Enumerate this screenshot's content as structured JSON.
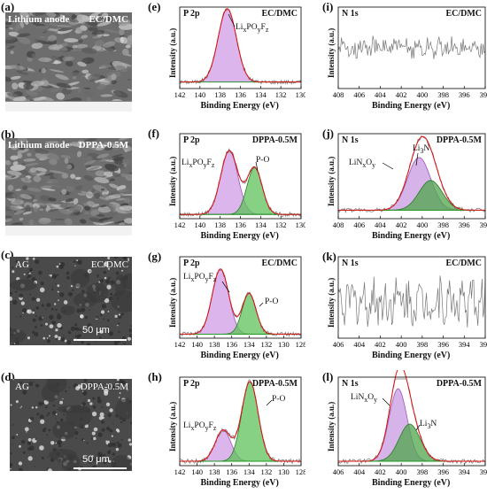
{
  "sem": [
    {
      "label": "(a)",
      "left_text": "Lithium anode",
      "right_text": "EC/DMC",
      "scale_text": ""
    },
    {
      "label": "(b)",
      "left_text": "Lithium anode",
      "right_text": "DPPA-0.5M",
      "scale_text": ""
    },
    {
      "label": "(c)",
      "left_text": "AG",
      "right_text": "EC/DMC",
      "scale_text": "50 μm"
    },
    {
      "label": "(d)",
      "left_text": "AG",
      "right_text": "DPPA-0.5M",
      "scale_text": "50 μm"
    }
  ],
  "common": {
    "ylabel": "Intensity (a.u.)",
    "xlabel": "Binding Energy (eV)"
  },
  "colors": {
    "lipof_fill": "#cf9ce6",
    "po_fill": "#5ec25a",
    "linxoy_fill": "#c89ae0",
    "li3n_fill": "#4ea64b",
    "envelope": "#e01010",
    "raw": "#777777",
    "background": "#1a9a1a"
  },
  "chart_data": [
    {
      "panel": "(e)",
      "type": "line",
      "element": "P 2p",
      "condition": "EC/DMC",
      "xlim": [
        142,
        130
      ],
      "ticks": [
        142,
        140,
        138,
        136,
        134,
        132,
        130
      ],
      "peaks": [
        {
          "label": "LixPOyFz",
          "center": 137.3,
          "height": 0.9,
          "width": 0.9
        }
      ],
      "background_level": 0.08
    },
    {
      "panel": "(i)",
      "type": "line",
      "element": "N 1s",
      "condition": "EC/DMC",
      "xlim": [
        408,
        394
      ],
      "ticks": [
        408,
        406,
        404,
        402,
        400,
        398,
        396,
        394
      ],
      "peaks": [],
      "background_level": 0.5
    },
    {
      "panel": "(f)",
      "type": "line",
      "element": "P 2p",
      "condition": "DPPA-0.5M",
      "xlim": [
        142,
        130
      ],
      "ticks": [
        142,
        140,
        138,
        136,
        134,
        132,
        130
      ],
      "peaks": [
        {
          "label": "LixPOyFz",
          "center": 137.1,
          "height": 0.75,
          "width": 0.85
        },
        {
          "label": "P-O",
          "center": 134.6,
          "height": 0.55,
          "width": 0.75
        }
      ],
      "background_level": 0.05
    },
    {
      "panel": "(j)",
      "type": "line",
      "element": "N 1s",
      "condition": "DPPA-0.5M",
      "xlim": [
        408,
        394
      ],
      "ticks": [
        408,
        406,
        404,
        402,
        400,
        398,
        396,
        394
      ],
      "peaks": [
        {
          "label": "LiNxOy",
          "center": 400.3,
          "height": 0.62,
          "width": 1.1
        },
        {
          "label": "Li3N",
          "center": 399.2,
          "height": 0.35,
          "width": 1.1
        }
      ],
      "background_level": 0.1
    },
    {
      "panel": "(g)",
      "type": "line",
      "element": "P 2p",
      "condition": "EC/DMC",
      "xlim": [
        142,
        128
      ],
      "ticks": [
        142,
        140,
        138,
        136,
        134,
        132,
        130,
        128
      ],
      "peaks": [
        {
          "label": "LixPOyFz",
          "center": 137.3,
          "height": 0.8,
          "width": 0.95
        },
        {
          "label": "P-O",
          "center": 134.0,
          "height": 0.5,
          "width": 0.8
        }
      ],
      "background_level": 0.05
    },
    {
      "panel": "(k)",
      "type": "line",
      "element": "N 1s",
      "condition": "EC/DMC",
      "xlim": [
        406,
        392
      ],
      "ticks": [
        406,
        404,
        402,
        400,
        398,
        396,
        394,
        392
      ],
      "peaks": [],
      "background_level": 0.45
    },
    {
      "panel": "(h)",
      "type": "line",
      "element": "P 2p",
      "condition": "DPPA-0.5M",
      "xlim": [
        142,
        128
      ],
      "ticks": [
        142,
        140,
        138,
        136,
        134,
        132,
        130,
        128
      ],
      "peaks": [
        {
          "label": "LixPOyFz",
          "center": 137.0,
          "height": 0.35,
          "width": 0.9
        },
        {
          "label": "P-O",
          "center": 133.9,
          "height": 0.9,
          "width": 0.95
        }
      ],
      "background_level": 0.05
    },
    {
      "panel": "(l)",
      "type": "line",
      "element": "N 1s",
      "condition": "DPPA-0.5M",
      "xlim": [
        406,
        392
      ],
      "ticks": [
        406,
        404,
        402,
        400,
        398,
        396,
        394,
        392
      ],
      "peaks": [
        {
          "label": "LiNxOy",
          "center": 400.3,
          "height": 0.82,
          "width": 0.85
        },
        {
          "label": "Li3N",
          "center": 399.2,
          "height": 0.42,
          "width": 1.0
        }
      ],
      "background_level": 0.05
    }
  ]
}
